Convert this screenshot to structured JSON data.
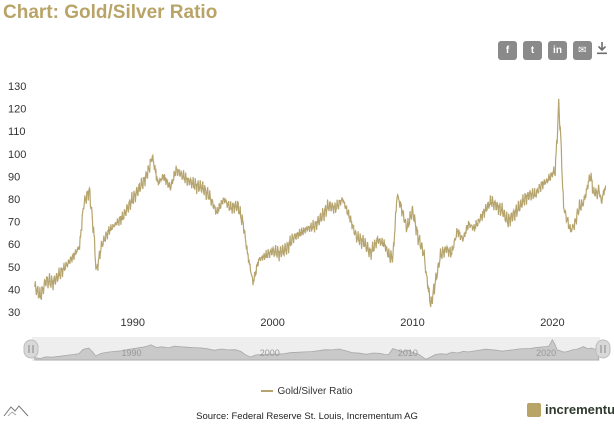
{
  "page": {
    "title": "Chart: Gold/Silver Ratio"
  },
  "toolbar": {
    "share_buttons": [
      {
        "name": "facebook-share-button",
        "icon": "facebook-icon",
        "glyph": "f"
      },
      {
        "name": "twitter-share-button",
        "icon": "twitter-icon",
        "glyph": "t"
      },
      {
        "name": "linkedin-share-button",
        "icon": "linkedin-icon",
        "glyph": "in"
      },
      {
        "name": "email-share-button",
        "icon": "email-icon",
        "glyph": "✉"
      }
    ],
    "download_icon": "download-icon"
  },
  "colors": {
    "line": "#b5a46e",
    "title": "#b9a468",
    "navigator": "#c9c9c9"
  },
  "legend": {
    "label": "Gold/Silver Ratio"
  },
  "source": {
    "text": "Source: Federal Reserve St. Louis, Incrementum AG"
  },
  "brand": {
    "name": "incrementum"
  },
  "chart_data": {
    "type": "line",
    "title": "Gold/Silver Ratio",
    "xlabel": "",
    "ylabel": "",
    "xlim": [
      1982.8,
      2023.9
    ],
    "ylim": [
      30,
      130
    ],
    "yticks": [
      30,
      40,
      50,
      60,
      70,
      80,
      90,
      100,
      110,
      120,
      130
    ],
    "xticks": [
      1990,
      2000,
      2010,
      2020
    ],
    "grid": false,
    "series": [
      {
        "name": "Gold/Silver Ratio",
        "x": [
          1983.0,
          1983.4,
          1983.8,
          1984.3,
          1984.8,
          1985.3,
          1985.8,
          1986.2,
          1986.5,
          1986.9,
          1987.2,
          1987.4,
          1987.8,
          1988.3,
          1988.8,
          1989.3,
          1989.8,
          1990.3,
          1990.8,
          1991.1,
          1991.4,
          1991.8,
          1992.2,
          1992.7,
          1993.1,
          1993.6,
          1994.0,
          1994.5,
          1995.0,
          1995.5,
          1996.0,
          1996.5,
          1997.0,
          1997.5,
          1997.9,
          1998.2,
          1998.6,
          1999.0,
          1999.5,
          2000.0,
          2000.5,
          2001.0,
          2001.5,
          2002.0,
          2002.5,
          2003.0,
          2003.5,
          2004.0,
          2004.5,
          2005.0,
          2005.5,
          2006.0,
          2006.5,
          2007.0,
          2007.5,
          2008.0,
          2008.3,
          2008.6,
          2008.9,
          2009.2,
          2009.6,
          2010.0,
          2010.4,
          2010.8,
          2011.0,
          2011.3,
          2011.6,
          2012.0,
          2012.4,
          2012.8,
          2013.2,
          2013.6,
          2014.0,
          2014.4,
          2014.8,
          2015.2,
          2015.6,
          2016.0,
          2016.4,
          2016.8,
          2017.2,
          2017.6,
          2018.0,
          2018.4,
          2018.8,
          2019.2,
          2019.6,
          2020.0,
          2020.2,
          2020.3,
          2020.45,
          2020.6,
          2020.8,
          2021.0,
          2021.3,
          2021.6,
          2021.9,
          2022.2,
          2022.5,
          2022.7,
          2022.9,
          2023.1,
          2023.3,
          2023.5,
          2023.8
        ],
        "values": [
          41,
          37,
          44,
          43,
          47,
          51,
          55,
          59,
          78,
          84,
          66,
          48,
          60,
          66,
          69,
          72,
          78,
          83,
          88,
          92,
          99,
          87,
          90,
          85,
          93,
          90,
          88,
          86,
          85,
          81,
          74,
          80,
          76,
          77,
          69,
          56,
          43,
          53,
          55,
          57,
          56,
          58,
          63,
          65,
          67,
          68,
          72,
          77,
          76,
          80,
          72,
          63,
          61,
          56,
          62,
          60,
          55,
          54,
          82,
          76,
          67,
          75,
          63,
          56,
          46,
          33,
          42,
          55,
          58,
          56,
          66,
          62,
          69,
          67,
          71,
          75,
          79,
          77,
          75,
          70,
          73,
          76,
          80,
          82,
          82,
          86,
          88,
          91,
          93,
          103,
          122,
          106,
          76,
          72,
          66,
          69,
          76,
          78,
          85,
          91,
          84,
          82,
          84,
          79,
          86
        ]
      }
    ],
    "navigator": {
      "labels": [
        "1990",
        "2000",
        "2010",
        "2020"
      ]
    }
  }
}
